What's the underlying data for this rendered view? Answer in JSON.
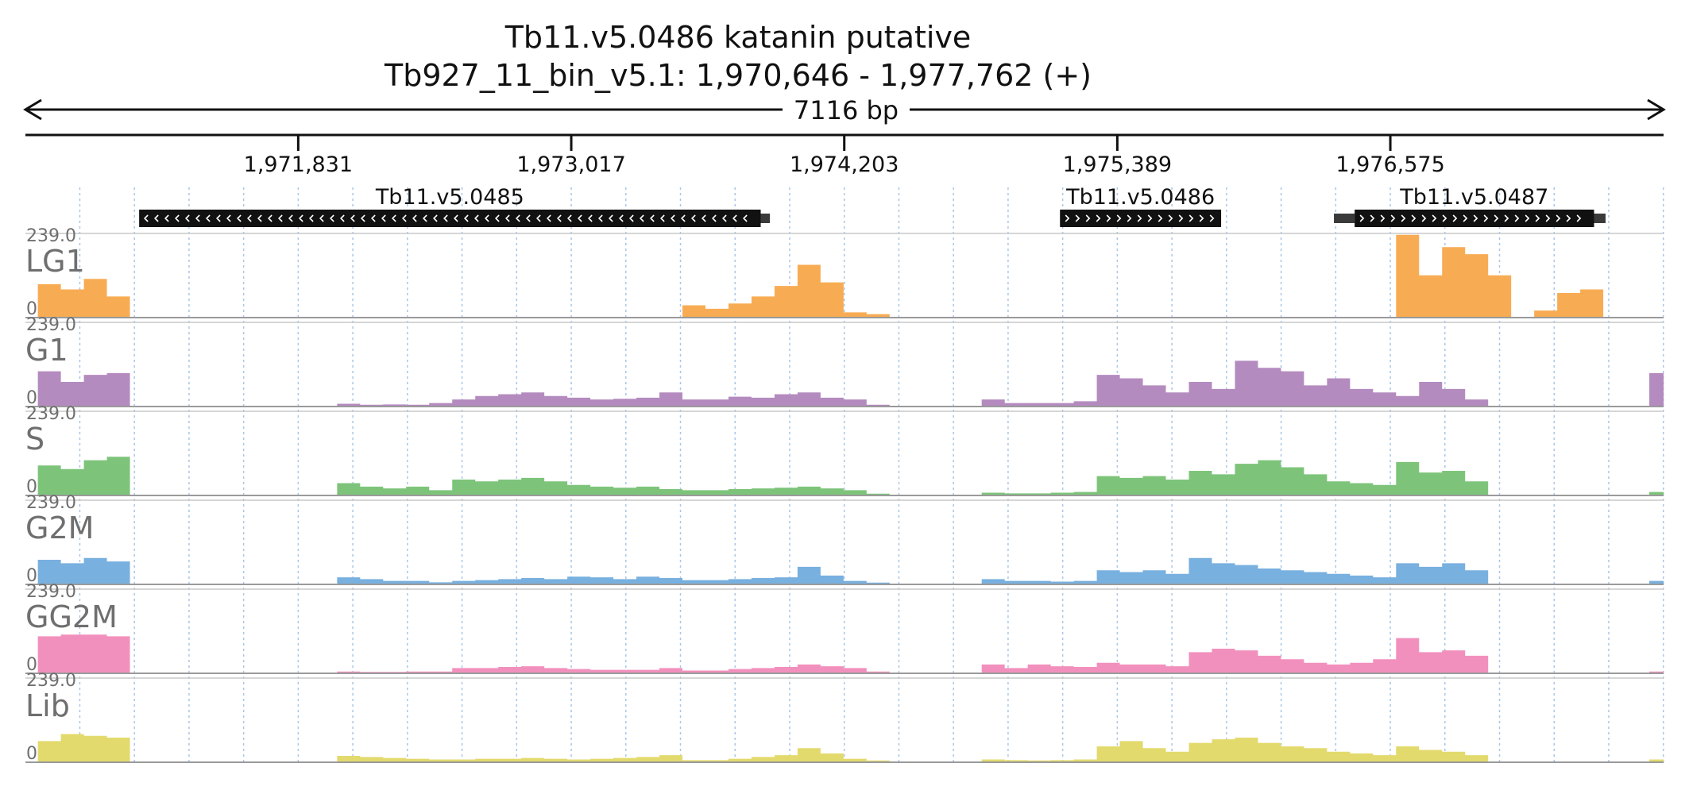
{
  "chart_data": {
    "type": "area",
    "title": "Tb11.v5.0486  katanin  putative",
    "subtitle": "Tb927_11_bin_v5.1: 1,970,646 - 1,977,762 (+)",
    "span_label": "7116 bp",
    "region": {
      "start": 1970646,
      "end": 1977762,
      "strand": "+"
    },
    "ticks": [
      {
        "pos": 1971831,
        "label": "1,971,831"
      },
      {
        "pos": 1973017,
        "label": "1,973,017"
      },
      {
        "pos": 1974203,
        "label": "1,974,203"
      },
      {
        "pos": 1975389,
        "label": "1,975,389"
      },
      {
        "pos": 1976575,
        "label": "1,976,575"
      }
    ],
    "genes": [
      {
        "name": "Tb11.v5.0485",
        "start": 1971140,
        "end": 1973840,
        "strand": "-",
        "utr": [
          [
            1973840,
            1973880
          ]
        ]
      },
      {
        "name": "Tb11.v5.0486",
        "start": 1975140,
        "end": 1975840,
        "strand": "+",
        "utr": []
      },
      {
        "name": "Tb11.v5.0487",
        "start": 1976420,
        "end": 1977460,
        "strand": "+",
        "utr": [
          [
            1976330,
            1976420
          ],
          [
            1977460,
            1977510
          ]
        ]
      }
    ],
    "y_max_label": "239.0",
    "y_min_label": "0",
    "ylim": [
      0,
      239
    ],
    "x_samples": [
      1970650,
      1970750,
      1970850,
      1970950,
      1971050,
      1971150,
      1971250,
      1971350,
      1971450,
      1971550,
      1971650,
      1971750,
      1971850,
      1971950,
      1972050,
      1972150,
      1972250,
      1972350,
      1972450,
      1972550,
      1972650,
      1972750,
      1972850,
      1972950,
      1973050,
      1973150,
      1973250,
      1973350,
      1973450,
      1973550,
      1973650,
      1973750,
      1973850,
      1973950,
      1974050,
      1974150,
      1974250,
      1974350,
      1974450,
      1974550,
      1974650,
      1974750,
      1974850,
      1974950,
      1975050,
      1975150,
      1975250,
      1975350,
      1975450,
      1975550,
      1975650,
      1975750,
      1975850,
      1975950,
      1976050,
      1976150,
      1976250,
      1976350,
      1976450,
      1976550,
      1976650,
      1976750,
      1976850,
      1976950,
      1977050,
      1977150,
      1977250,
      1977350,
      1977450,
      1977550,
      1977650,
      1977750
    ],
    "series": [
      {
        "name": "LG1",
        "color": "#f7ac54",
        "values": [
          0,
          95,
          80,
          110,
          60,
          0,
          0,
          0,
          0,
          0,
          0,
          0,
          0,
          0,
          0,
          0,
          0,
          0,
          0,
          0,
          0,
          0,
          0,
          0,
          0,
          0,
          0,
          0,
          0,
          35,
          25,
          40,
          60,
          90,
          150,
          100,
          15,
          10,
          0,
          0,
          0,
          0,
          0,
          0,
          0,
          0,
          0,
          0,
          0,
          0,
          0,
          0,
          0,
          0,
          0,
          0,
          0,
          0,
          0,
          0,
          235,
          120,
          200,
          180,
          120,
          0,
          20,
          70,
          80,
          0,
          0,
          0
        ]
      },
      {
        "name": "G1",
        "color": "#b48bbf",
        "values": [
          0,
          100,
          70,
          90,
          95,
          0,
          0,
          0,
          0,
          0,
          0,
          0,
          0,
          0,
          8,
          5,
          6,
          5,
          10,
          20,
          30,
          35,
          40,
          30,
          25,
          20,
          22,
          25,
          40,
          20,
          20,
          28,
          25,
          35,
          40,
          25,
          20,
          5,
          0,
          0,
          0,
          0,
          20,
          10,
          10,
          10,
          15,
          90,
          80,
          60,
          40,
          70,
          50,
          130,
          110,
          100,
          60,
          80,
          50,
          40,
          30,
          70,
          50,
          20,
          0,
          0,
          0,
          0,
          0,
          0,
          0,
          95
        ]
      },
      {
        "name": "S",
        "color": "#7dc47a",
        "values": [
          0,
          85,
          75,
          100,
          110,
          0,
          0,
          0,
          0,
          0,
          0,
          0,
          0,
          0,
          35,
          25,
          20,
          25,
          15,
          45,
          40,
          45,
          50,
          40,
          30,
          25,
          22,
          25,
          18,
          15,
          15,
          18,
          20,
          22,
          25,
          20,
          15,
          5,
          0,
          0,
          0,
          0,
          8,
          6,
          6,
          8,
          10,
          55,
          50,
          55,
          45,
          70,
          60,
          90,
          100,
          80,
          60,
          40,
          35,
          30,
          95,
          65,
          70,
          40,
          0,
          0,
          0,
          0,
          0,
          0,
          0,
          10
        ]
      },
      {
        "name": "G2M",
        "color": "#78b0df",
        "values": [
          0,
          70,
          60,
          75,
          65,
          0,
          0,
          0,
          0,
          0,
          0,
          0,
          0,
          0,
          20,
          15,
          10,
          10,
          6,
          10,
          12,
          15,
          18,
          15,
          22,
          20,
          15,
          22,
          18,
          12,
          12,
          15,
          18,
          20,
          50,
          25,
          10,
          5,
          0,
          0,
          0,
          0,
          15,
          10,
          10,
          8,
          10,
          40,
          35,
          40,
          30,
          75,
          60,
          55,
          45,
          40,
          35,
          30,
          25,
          20,
          60,
          50,
          60,
          40,
          0,
          0,
          0,
          0,
          0,
          0,
          0,
          10
        ]
      },
      {
        "name": "GG2M",
        "color": "#f290bd",
        "values": [
          0,
          105,
          110,
          110,
          105,
          0,
          0,
          0,
          0,
          0,
          0,
          0,
          0,
          0,
          5,
          4,
          4,
          5,
          5,
          15,
          15,
          18,
          20,
          15,
          12,
          10,
          10,
          10,
          15,
          8,
          8,
          12,
          15,
          18,
          25,
          20,
          15,
          5,
          0,
          0,
          0,
          0,
          25,
          15,
          25,
          20,
          18,
          30,
          25,
          25,
          20,
          60,
          70,
          65,
          50,
          40,
          30,
          25,
          30,
          40,
          100,
          60,
          65,
          50,
          0,
          0,
          0,
          0,
          0,
          0,
          0,
          5
        ]
      },
      {
        "name": "Lib",
        "color": "#e3da6d",
        "values": [
          0,
          60,
          80,
          75,
          70,
          0,
          0,
          0,
          0,
          0,
          0,
          0,
          0,
          0,
          18,
          15,
          12,
          10,
          8,
          8,
          10,
          10,
          12,
          10,
          8,
          10,
          12,
          15,
          20,
          6,
          6,
          10,
          15,
          20,
          40,
          25,
          10,
          5,
          0,
          0,
          0,
          0,
          8,
          6,
          5,
          6,
          8,
          45,
          60,
          40,
          30,
          55,
          65,
          70,
          55,
          45,
          40,
          30,
          25,
          20,
          45,
          35,
          30,
          20,
          0,
          0,
          0,
          0,
          0,
          0,
          0,
          8
        ]
      }
    ]
  }
}
